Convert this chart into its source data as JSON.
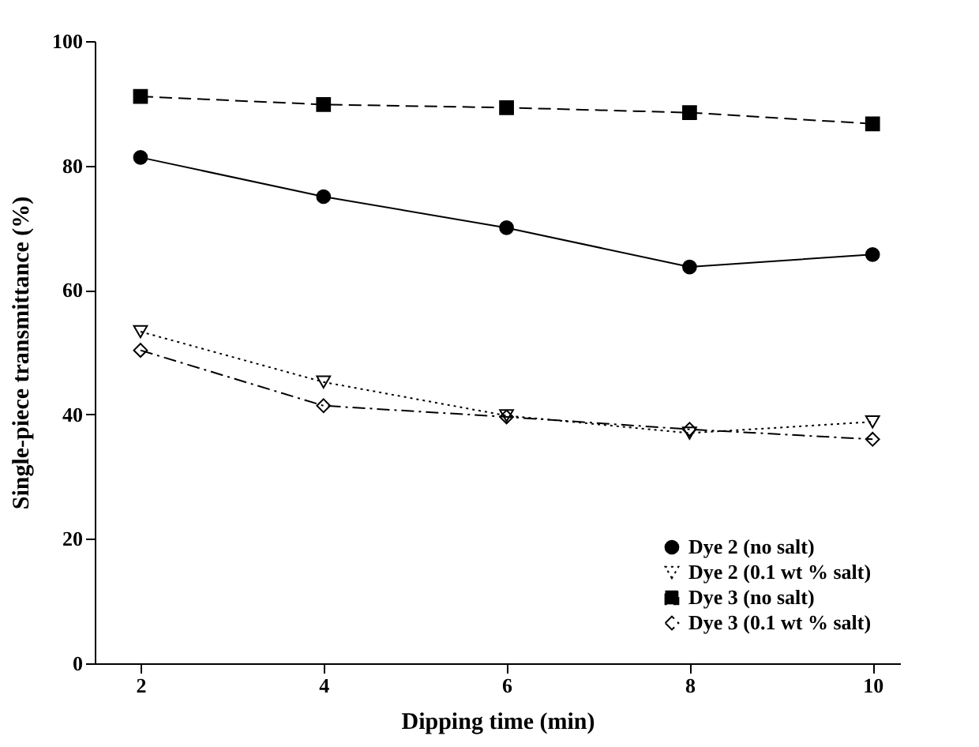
{
  "chart_data": {
    "type": "line",
    "xlabel": "Dipping time (min)",
    "ylabel": "Single-piece transmittance (%)",
    "x": [
      2,
      4,
      6,
      8,
      10
    ],
    "xlim": [
      1.5,
      10.3
    ],
    "xticks": [
      2,
      4,
      6,
      8,
      10
    ],
    "ylim": [
      0,
      100
    ],
    "yticks": [
      0,
      20,
      40,
      60,
      80,
      100
    ],
    "grid": false,
    "legend": "bottom right",
    "series": [
      {
        "name": "Dye 2 (no salt)",
        "color": "#000000",
        "marker": "circle",
        "line_style": "solid",
        "values": [
          81.3,
          75,
          70,
          63.7,
          65.7
        ]
      },
      {
        "name": "Dye 2 (0.1 wt % salt)",
        "color": "#000000",
        "marker": "triangle",
        "line_style": "dotted",
        "values": [
          53.3,
          45.2,
          39.8,
          37,
          38.8
        ]
      },
      {
        "name": "Dye 3 (no salt)",
        "color": "#000000",
        "marker": "square",
        "line_style": "dashed",
        "values": [
          91.1,
          89.8,
          89.3,
          88.5,
          86.7
        ]
      },
      {
        "name": "Dye 3 (0.1 wt % salt)",
        "color": "#000000",
        "marker": "diamond",
        "line_style": "dashdot",
        "values": [
          50.3,
          41.4,
          39.6,
          37.6,
          36
        ]
      }
    ]
  }
}
